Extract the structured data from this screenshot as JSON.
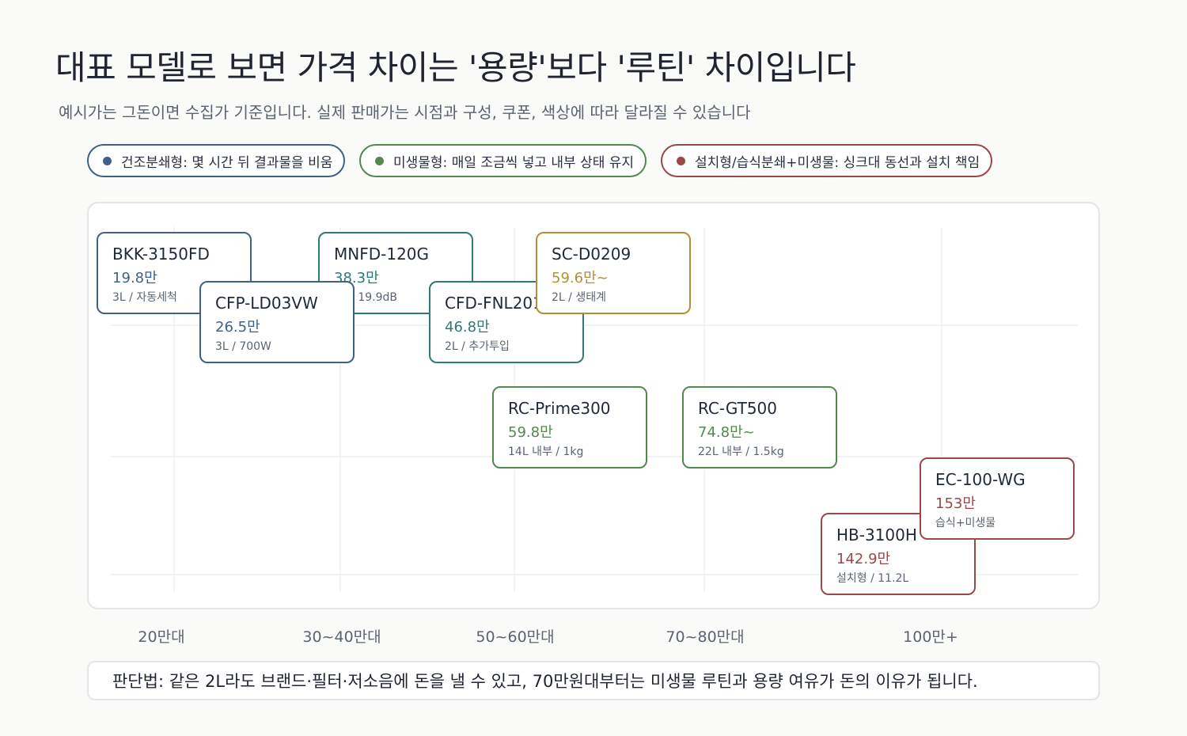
{
  "title": "대표 모델로 보면 가격 차이는 '용량'보다 '루틴' 차이입니다",
  "subtitle": "예시가는 그돈이면 수집가 기준입니다. 실제 판매가는 시점과 구성, 쿠폰, 색상에 따라 달라질 수 있습니다",
  "legend": [
    {
      "label": "건조분쇄형: 몇 시간 뒤 결과물을 비움",
      "color": "#3f6188"
    },
    {
      "label": "미생물형: 매일 조금씩 넣고 내부 상태 유지",
      "color": "#4f8a4f"
    },
    {
      "label": "설치형/습식분쇄+미생물: 싱크대 동선과 설치 책임",
      "color": "#9a4848"
    }
  ],
  "note": "판단법: 같은 2L라도 브랜드·필터·저소음에 돈을 낼 수 있고, 70만원대부터는 미생물 루틴과 용량 여유가 돈의 이유가 됩니다.",
  "colors": {
    "dry": "#3f6188",
    "dry_teal": "#2f7a72",
    "eco": "#b58e33",
    "microbe": "#4f8a4f",
    "install": "#9a4848"
  },
  "chart_data": {
    "type": "scatter",
    "x_ticks": [
      "20만대",
      "30~40만대",
      "50~60만대",
      "70~80만대",
      "100만+"
    ],
    "points": [
      {
        "model": "BKK-3150FD",
        "price_label": "19.8만",
        "spec": "3L / 자동세척",
        "price": 19.8,
        "type": "건조분쇄형",
        "color": "#3f6188"
      },
      {
        "model": "CFP-LD03VW",
        "price_label": "26.5만",
        "spec": "3L / 700W",
        "price": 26.5,
        "type": "건조분쇄형",
        "color": "#3f6188"
      },
      {
        "model": "MNFD-120G",
        "price_label": "38.3만",
        "spec": "2L / 19.9dB",
        "price": 38.3,
        "type": "건조분쇄형",
        "color": "#2f7a72"
      },
      {
        "model": "CFD-FNL201",
        "price_label": "46.8만",
        "spec": "2L / 추가투입",
        "price": 46.8,
        "type": "건조분쇄형",
        "color": "#2f7a72"
      },
      {
        "model": "SC-D0209",
        "price_label": "59.6만~",
        "spec": "2L / 생태계",
        "price": 59.6,
        "type": "건조분쇄형",
        "color": "#b58e33"
      },
      {
        "model": "RC-Prime300",
        "price_label": "59.8만",
        "spec": "14L 내부 / 1kg",
        "price": 59.8,
        "type": "미생물형",
        "color": "#4f8a4f"
      },
      {
        "model": "RC-GT500",
        "price_label": "74.8만~",
        "spec": "22L 내부 / 1.5kg",
        "price": 74.8,
        "type": "미생물형",
        "color": "#4f8a4f"
      },
      {
        "model": "HB-3100H",
        "price_label": "142.9만",
        "spec": "설치형 / 11.2L",
        "price": 142.9,
        "type": "설치형/습식분쇄+미생물",
        "color": "#9a4848"
      },
      {
        "model": "EC-100-WG",
        "price_label": "153만",
        "spec": "습식+미생물",
        "price": 153,
        "type": "설치형/습식분쇄+미생물",
        "color": "#9a4848"
      }
    ]
  }
}
